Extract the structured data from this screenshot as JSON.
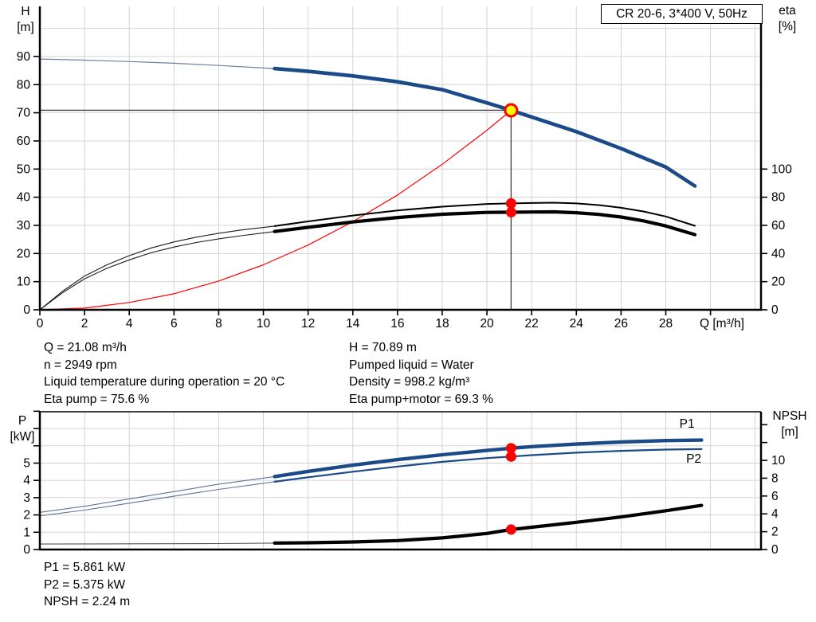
{
  "colors": {
    "curve_blue": "#1b4a89",
    "thin_blue": "#5d749b",
    "thin_gray_blue": "#6e7f98",
    "curve_black": "#000000",
    "system_red": "#ff0000",
    "duty_yellow": "#ffff00",
    "dot_red": "#ff0000",
    "grid": "#d4d4d4",
    "axis": "#000000",
    "crosshair": "#404040"
  },
  "info_top": {
    "left": [
      "Q = 21.08 m³/h",
      "n = 2949 rpm",
      "Liquid temperature during operation = 20 °C",
      "Eta pump = 75.6 %"
    ],
    "right": [
      "H = 70.89 m",
      "Pumped liquid = Water",
      "Density = 998.2 kg/m³",
      "Eta pump+motor = 69.3 %"
    ]
  },
  "info_bottom": [
    "P1 = 5.861 kW",
    "P2 = 5.375 kW",
    "NPSH = 2.24 m"
  ],
  "chart_data": [
    {
      "id": "qh-eta-chart",
      "type": "line",
      "title": "CR 20-6, 3*400 V, 50Hz",
      "axes": {
        "x": {
          "title": "Q [m³/h]",
          "min": 0,
          "max": 32.26,
          "ticks": [
            0,
            2,
            4,
            6,
            8,
            10,
            12,
            14,
            16,
            18,
            20,
            22,
            24,
            26,
            28,
            30
          ],
          "labeled": [
            0,
            2,
            4,
            6,
            8,
            10,
            12,
            14,
            16,
            18,
            20,
            22,
            24,
            26,
            28
          ],
          "grid": [
            2,
            4,
            6,
            8,
            10,
            12,
            14,
            16,
            18,
            20,
            22,
            24,
            26,
            28,
            30,
            32
          ]
        },
        "left": {
          "name": "H",
          "unit": "[m]",
          "min": 0,
          "max": 107.8,
          "ticks": [
            0,
            10,
            20,
            30,
            40,
            50,
            60,
            70,
            80,
            90
          ],
          "labeled": [
            0,
            10,
            20,
            30,
            40,
            50,
            60,
            70,
            80,
            90
          ],
          "grid": [
            10,
            20,
            30,
            40,
            50,
            60,
            70,
            80,
            90,
            100
          ]
        },
        "right": {
          "name": "eta",
          "unit": "[%]",
          "min": 0,
          "max": 215.6,
          "ticks": [
            0,
            20,
            40,
            60,
            80,
            100
          ],
          "labeled": [
            0,
            20,
            40,
            60,
            80,
            100
          ],
          "grid": []
        }
      },
      "crosshair": {
        "q": 21.08,
        "value": 70.89,
        "axis": "left"
      },
      "series": [
        {
          "name": "system-curve",
          "axis": "left",
          "color": "#ff0000",
          "width": 1.2,
          "cap": "butt",
          "points": [
            [
              0,
              0
            ],
            [
              2,
              0.6
            ],
            [
              4,
              2.6
            ],
            [
              6,
              5.7
            ],
            [
              8,
              10.2
            ],
            [
              10,
              16.0
            ],
            [
              12,
              23.0
            ],
            [
              14,
              31.3
            ],
            [
              16,
              40.8
            ],
            [
              18,
              51.7
            ],
            [
              20,
              63.8
            ],
            [
              21.08,
              70.89
            ]
          ]
        },
        {
          "name": "head-curve-low-flow",
          "axis": "left",
          "color": "#6e7f98",
          "width": 1.2,
          "cap": "butt",
          "points": [
            [
              0,
              89.1
            ],
            [
              2,
              88.7
            ],
            [
              4,
              88.2
            ],
            [
              6,
              87.6
            ],
            [
              8,
              86.8
            ],
            [
              10.5,
              85.7
            ]
          ]
        },
        {
          "name": "head-curve",
          "axis": "left",
          "color": "#1b4a89",
          "width": 4.6,
          "cap": "round",
          "points": [
            [
              10.5,
              85.7
            ],
            [
              12,
              84.7
            ],
            [
              14,
              83.1
            ],
            [
              16,
              81.0
            ],
            [
              18,
              78.2
            ],
            [
              20,
              73.5
            ],
            [
              21.08,
              70.89
            ],
            [
              22,
              68.5
            ],
            [
              24,
              63.3
            ],
            [
              26,
              57.3
            ],
            [
              28,
              50.7
            ],
            [
              29.3,
              44.0
            ]
          ]
        },
        {
          "name": "eta-pump-curve-low-flow",
          "axis": "right",
          "color": "#1a1a1a",
          "width": 1.1,
          "cap": "butt",
          "points": [
            [
              0,
              0
            ],
            [
              1,
              13
            ],
            [
              2,
              24
            ],
            [
              3,
              32
            ],
            [
              4,
              38.5
            ],
            [
              5,
              44
            ],
            [
              6,
              48.2
            ],
            [
              7,
              51.6
            ],
            [
              8,
              54.4
            ],
            [
              9,
              56.7
            ],
            [
              10.5,
              59.5
            ]
          ]
        },
        {
          "name": "eta-pump-curve",
          "axis": "right",
          "color": "#000000",
          "width": 2.0,
          "cap": "round",
          "points": [
            [
              10.5,
              59.5
            ],
            [
              12,
              62.8
            ],
            [
              14,
              67.0
            ],
            [
              16,
              70.6
            ],
            [
              18,
              73.3
            ],
            [
              20,
              75.2
            ],
            [
              21.08,
              75.6
            ],
            [
              22,
              75.9
            ],
            [
              23,
              76.1
            ],
            [
              24,
              75.6
            ],
            [
              25,
              74.4
            ],
            [
              26,
              72.5
            ],
            [
              27,
              69.9
            ],
            [
              28,
              66.3
            ],
            [
              29.3,
              59.7
            ]
          ]
        },
        {
          "name": "eta-pump-motor-curve-low-flow",
          "axis": "right",
          "color": "#1a1a1a",
          "width": 1.1,
          "cap": "butt",
          "points": [
            [
              0,
              0
            ],
            [
              1,
              12
            ],
            [
              2,
              22
            ],
            [
              3,
              29.5
            ],
            [
              4,
              35.5
            ],
            [
              5,
              40.7
            ],
            [
              6,
              44.6
            ],
            [
              7,
              47.8
            ],
            [
              8,
              50.4
            ],
            [
              9,
              52.6
            ],
            [
              10.5,
              55.6
            ]
          ]
        },
        {
          "name": "eta-pump-motor-curve",
          "axis": "right",
          "color": "#000000",
          "width": 4.2,
          "cap": "round",
          "points": [
            [
              10.5,
              55.6
            ],
            [
              12,
              58.6
            ],
            [
              14,
              62.4
            ],
            [
              16,
              65.6
            ],
            [
              18,
              67.9
            ],
            [
              20,
              69.2
            ],
            [
              21.08,
              69.3
            ],
            [
              22,
              69.5
            ],
            [
              23,
              69.6
            ],
            [
              24,
              69.0
            ],
            [
              25,
              67.8
            ],
            [
              26,
              65.9
            ],
            [
              27,
              63.2
            ],
            [
              28,
              59.6
            ],
            [
              29.3,
              53.4
            ]
          ]
        }
      ],
      "points": [
        {
          "name": "duty-point",
          "q": 21.08,
          "value": 70.89,
          "axis": "left",
          "type": "duty",
          "interactable": true
        },
        {
          "name": "eta-pump-point",
          "q": 21.08,
          "value": 75.6,
          "axis": "right",
          "type": "dot",
          "interactable": false
        },
        {
          "name": "eta-pump-motor-point",
          "q": 21.08,
          "value": 69.3,
          "axis": "right",
          "type": "dot",
          "interactable": false
        }
      ],
      "labels": []
    },
    {
      "id": "power-npsh-chart",
      "type": "line",
      "title": "",
      "axes": {
        "x": {
          "title": "",
          "min": 0,
          "max": 32.26,
          "ticks": [],
          "labeled": [],
          "grid": [
            2,
            4,
            6,
            8,
            10,
            12,
            14,
            16,
            18,
            20,
            22,
            24,
            26,
            28,
            30,
            32
          ]
        },
        "left": {
          "name": "P",
          "unit": "[kW]",
          "min": 0,
          "max": 7.97,
          "ticks": [
            0,
            1,
            2,
            3,
            4,
            5,
            6,
            7,
            8
          ],
          "labeled": [
            0,
            1,
            2,
            3,
            4,
            5
          ],
          "grid": [
            1,
            2,
            3,
            4,
            5,
            6,
            7
          ]
        },
        "right": {
          "name": "NPSH",
          "unit": "[m]",
          "min": 0,
          "max": 15.45,
          "ticks": [
            0,
            2,
            4,
            6,
            8,
            10,
            12,
            14
          ],
          "labeled": [
            0,
            2,
            4,
            6,
            8,
            10
          ],
          "grid": []
        }
      },
      "crosshair": null,
      "series": [
        {
          "name": "p1-curve-low-flow",
          "axis": "left",
          "color": "#5d749b",
          "width": 1.1,
          "cap": "butt",
          "points": [
            [
              0,
              2.15
            ],
            [
              2,
              2.5
            ],
            [
              4,
              2.93
            ],
            [
              6,
              3.35
            ],
            [
              8,
              3.78
            ],
            [
              10.5,
              4.22
            ]
          ]
        },
        {
          "name": "p2-curve-low-flow",
          "axis": "left",
          "color": "#5d749b",
          "width": 1.1,
          "cap": "butt",
          "points": [
            [
              0,
              1.95
            ],
            [
              2,
              2.28
            ],
            [
              4,
              2.68
            ],
            [
              6,
              3.08
            ],
            [
              8,
              3.48
            ],
            [
              10.5,
              3.92
            ]
          ]
        },
        {
          "name": "p1-curve",
          "axis": "left",
          "color": "#1b4a89",
          "width": 4.4,
          "cap": "round",
          "points": [
            [
              10.5,
              4.22
            ],
            [
              12,
              4.52
            ],
            [
              14,
              4.88
            ],
            [
              16,
              5.2
            ],
            [
              18,
              5.48
            ],
            [
              20,
              5.73
            ],
            [
              21.08,
              5.861
            ],
            [
              22,
              5.95
            ],
            [
              24,
              6.1
            ],
            [
              26,
              6.22
            ],
            [
              28,
              6.3
            ],
            [
              29.6,
              6.33
            ]
          ]
        },
        {
          "name": "p2-curve",
          "axis": "left",
          "color": "#1b4a89",
          "width": 2.2,
          "cap": "round",
          "points": [
            [
              10.5,
              3.92
            ],
            [
              12,
              4.18
            ],
            [
              14,
              4.5
            ],
            [
              16,
              4.8
            ],
            [
              18,
              5.07
            ],
            [
              20,
              5.29
            ],
            [
              21.08,
              5.375
            ],
            [
              22,
              5.46
            ],
            [
              24,
              5.6
            ],
            [
              26,
              5.71
            ],
            [
              28,
              5.78
            ],
            [
              29.6,
              5.81
            ]
          ]
        },
        {
          "name": "npsh-curve-low-flow",
          "axis": "right",
          "color": "#555555",
          "width": 1.1,
          "cap": "butt",
          "points": [
            [
              0,
              0.62
            ],
            [
              4,
              0.64
            ],
            [
              8,
              0.67
            ],
            [
              10.5,
              0.72
            ]
          ]
        },
        {
          "name": "npsh-curve",
          "axis": "right",
          "color": "#000000",
          "width": 4.2,
          "cap": "round",
          "points": [
            [
              10.5,
              0.72
            ],
            [
              12,
              0.76
            ],
            [
              14,
              0.85
            ],
            [
              16,
              1.0
            ],
            [
              18,
              1.3
            ],
            [
              20,
              1.8
            ],
            [
              21.08,
              2.24
            ],
            [
              22,
              2.5
            ],
            [
              24,
              3.05
            ],
            [
              26,
              3.65
            ],
            [
              28,
              4.35
            ],
            [
              29.6,
              4.95
            ]
          ]
        }
      ],
      "points": [
        {
          "name": "p1-point",
          "q": 21.08,
          "value": 5.861,
          "axis": "left",
          "type": "dot",
          "interactable": false
        },
        {
          "name": "p2-point",
          "q": 21.08,
          "value": 5.375,
          "axis": "left",
          "type": "dot",
          "interactable": false
        },
        {
          "name": "npsh-point",
          "q": 21.08,
          "value": 2.24,
          "axis": "right",
          "type": "dot",
          "interactable": false
        }
      ],
      "labels": [
        {
          "text": "P1",
          "q": 28.95,
          "value": 7.05,
          "axis": "left",
          "color": "#1b4a89"
        },
        {
          "text": "P2",
          "q": 29.25,
          "value": 5.02,
          "axis": "left",
          "color": "#1b4a89"
        }
      ]
    }
  ]
}
